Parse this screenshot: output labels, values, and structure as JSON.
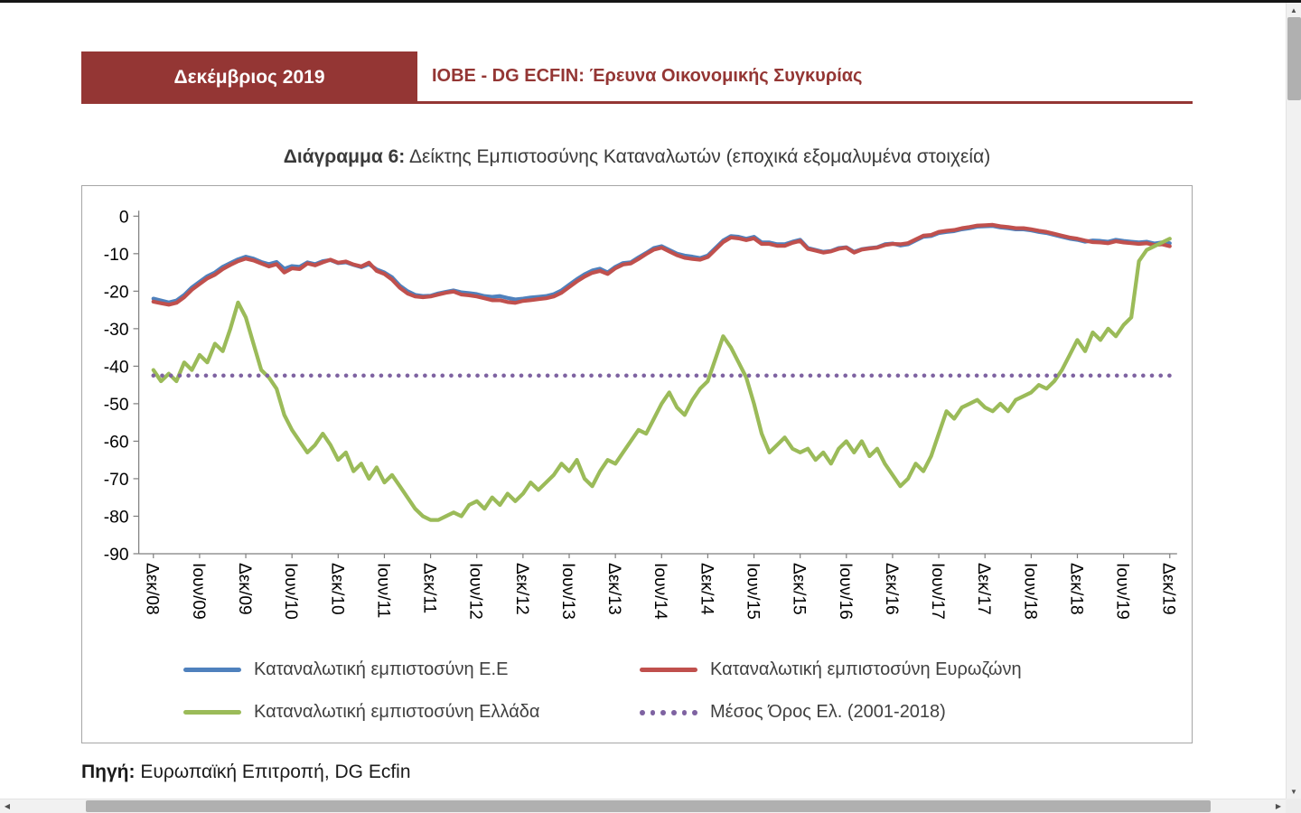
{
  "header": {
    "date_badge": "Δεκέμβριος 2019",
    "title": "ΙΟΒΕ - DG ECFIN: Έρευνα Οικονομικής Συγκυρίας",
    "accent_color": "#943634"
  },
  "figure": {
    "caption_label": "Διάγραμμα 6:",
    "caption_text": " Δείκτης Εμπιστοσύνης Καταναλωτών (εποχικά εξομαλυμένα στοιχεία)"
  },
  "chart_data": {
    "type": "line",
    "title": "Διάγραμμα 6: Δείκτης Εμπιστοσύνης Καταναλωτών (εποχικά εξομαλυμένα στοιχεία)",
    "y_axis": {
      "min": -90,
      "max": 0,
      "tick_step": 10
    },
    "x_tick_labels": [
      "Δεκ/08",
      "Ιουν/09",
      "Δεκ/09",
      "Ιουν/10",
      "Δεκ/10",
      "Ιουν/11",
      "Δεκ/11",
      "Ιουν/12",
      "Δεκ/12",
      "Ιουν/13",
      "Δεκ/13",
      "Ιουν/14",
      "Δεκ/14",
      "Ιουν/15",
      "Δεκ/15",
      "Ιουν/16",
      "Δεκ/16",
      "Ιουν/17",
      "Δεκ/17",
      "Ιουν/18",
      "Δεκ/18",
      "Ιουν/19",
      "Δεκ/19"
    ],
    "points_per_tick": 6,
    "grid": false,
    "legend_position": "bottom",
    "series": [
      {
        "name": "Καταναλωτική εμπιστοσύνη Ε.Ε",
        "color": "#4F81BD",
        "values": [
          -22,
          -22.5,
          -23,
          -22.5,
          -21,
          -19,
          -17.5,
          -16,
          -15,
          -13.5,
          -12.5,
          -11.5,
          -10.8,
          -11.3,
          -12.2,
          -12.8,
          -12.2,
          -14,
          -13.3,
          -13.5,
          -12.3,
          -12.8,
          -12,
          -11.7,
          -12.5,
          -12.3,
          -13,
          -13.6,
          -12.8,
          -14.2,
          -15,
          -16.3,
          -18.5,
          -20,
          -21,
          -21.3,
          -21.2,
          -20.6,
          -20.2,
          -19.8,
          -20.3,
          -20.5,
          -20.8,
          -21.3,
          -21.5,
          -21.3,
          -21.8,
          -22.2,
          -22,
          -21.7,
          -21.5,
          -21.3,
          -20.8,
          -19.8,
          -18.3,
          -16.8,
          -15.5,
          -14.5,
          -14,
          -15,
          -13.5,
          -12.5,
          -12.3,
          -11,
          -9.8,
          -8.5,
          -8,
          -9,
          -10,
          -10.5,
          -10.8,
          -11.2,
          -10.5,
          -8.5,
          -6.5,
          -5.3,
          -5.5,
          -6,
          -5.5,
          -7,
          -7,
          -7.5,
          -7.5,
          -6.8,
          -6.3,
          -8.5,
          -9,
          -9.5,
          -9.3,
          -8.5,
          -8.3,
          -9.5,
          -8.8,
          -8.5,
          -8.3,
          -7.5,
          -7.3,
          -7.8,
          -7.5,
          -6.5,
          -5.5,
          -5.3,
          -4.5,
          -4.2,
          -4,
          -3.5,
          -3.2,
          -2.8,
          -2.7,
          -2.6,
          -3,
          -3.2,
          -3.5,
          -3.5,
          -3.8,
          -4.2,
          -4.5,
          -5,
          -5.5,
          -6,
          -6.3,
          -6.8,
          -6.5,
          -6.6,
          -6.8,
          -6.3,
          -6.6,
          -6.8,
          -7,
          -6.8,
          -7.3,
          -7,
          -7.2
        ]
      },
      {
        "name": "Καταναλωτική εμπιστοσύνη Ευρωζώνη",
        "color": "#C0504D",
        "values": [
          -22.8,
          -23.2,
          -23.6,
          -23.1,
          -21.6,
          -19.6,
          -18.1,
          -16.6,
          -15.6,
          -14.1,
          -13,
          -12,
          -11.3,
          -11.8,
          -12.6,
          -13.4,
          -12.8,
          -15,
          -13.9,
          -14.1,
          -12.6,
          -13.1,
          -12.3,
          -11.6,
          -12.4,
          -12.1,
          -12.9,
          -13.4,
          -12.4,
          -14.6,
          -15.4,
          -16.9,
          -19.1,
          -20.6,
          -21.4,
          -21.6,
          -21.4,
          -20.9,
          -20.4,
          -20.1,
          -20.9,
          -21.1,
          -21.4,
          -21.9,
          -22.4,
          -22.4,
          -22.9,
          -23.1,
          -22.6,
          -22.4,
          -22.1,
          -21.9,
          -21.4,
          -20.4,
          -18.9,
          -17.4,
          -16.1,
          -15.1,
          -14.6,
          -15.4,
          -13.9,
          -12.9,
          -12.6,
          -11.4,
          -10.1,
          -8.9,
          -8.4,
          -9.4,
          -10.4,
          -11.1,
          -11.4,
          -11.6,
          -10.9,
          -8.9,
          -6.9,
          -5.7,
          -5.9,
          -6.4,
          -5.9,
          -7.4,
          -7.4,
          -7.9,
          -7.9,
          -7.1,
          -6.6,
          -8.7,
          -9.2,
          -9.7,
          -9.4,
          -8.7,
          -8.4,
          -9.7,
          -8.9,
          -8.6,
          -8.4,
          -7.7,
          -7.4,
          -7.5,
          -7.2,
          -6.2,
          -5.2,
          -5,
          -4.2,
          -3.9,
          -3.7,
          -3.2,
          -2.9,
          -2.5,
          -2.4,
          -2.3,
          -2.7,
          -2.9,
          -3.2,
          -3.2,
          -3.5,
          -3.9,
          -4.2,
          -4.7,
          -5.2,
          -5.7,
          -6,
          -6.5,
          -6.9,
          -7,
          -7.2,
          -6.7,
          -7,
          -7.2,
          -7.4,
          -7.2,
          -7.7,
          -7.5,
          -8
        ]
      },
      {
        "name": "Καταναλωτική εμπιστοσύνη Ελλάδα",
        "color": "#9BBB59",
        "values": [
          -41,
          -44,
          -42,
          -44,
          -39,
          -41,
          -37,
          -39,
          -34,
          -36,
          -30,
          -23,
          -27,
          -34,
          -41,
          -43,
          -46,
          -53,
          -57,
          -60,
          -63,
          -61,
          -58,
          -61,
          -65,
          -63,
          -68,
          -66,
          -70,
          -67,
          -71,
          -69,
          -72,
          -75,
          -78,
          -80,
          -81,
          -81,
          -80,
          -79,
          -80,
          -77,
          -76,
          -78,
          -75,
          -77,
          -74,
          -76,
          -74,
          -71,
          -73,
          -71,
          -69,
          -66,
          -68,
          -65,
          -70,
          -72,
          -68,
          -65,
          -66,
          -63,
          -60,
          -57,
          -58,
          -54,
          -50,
          -47,
          -51,
          -53,
          -49,
          -46,
          -44,
          -38,
          -32,
          -35,
          -39,
          -43,
          -50,
          -58,
          -63,
          -61,
          -59,
          -62,
          -63,
          -62,
          -65,
          -63,
          -66,
          -62,
          -60,
          -63,
          -60,
          -64,
          -62,
          -66,
          -69,
          -72,
          -70,
          -66,
          -68,
          -64,
          -58,
          -52,
          -54,
          -51,
          -50,
          -49,
          -51,
          -52,
          -50,
          -52,
          -49,
          -48,
          -47,
          -45,
          -46,
          -44,
          -41,
          -37,
          -33,
          -36,
          -31,
          -33,
          -30,
          -32,
          -29,
          -27,
          -12,
          -9,
          -8,
          -7,
          -6
        ]
      },
      {
        "name": "Μέσος Όρος Ελ. (2001-2018)",
        "color": "#7E62A1",
        "style": "dotted",
        "constant": -42.5
      }
    ]
  },
  "footer": {
    "label": "Πηγή:",
    "text": " Ευρωπαϊκή Επιτροπή, DG Ecfin"
  },
  "icons": {
    "up": "▲",
    "down": "▼",
    "left": "◀",
    "right": "▶"
  }
}
